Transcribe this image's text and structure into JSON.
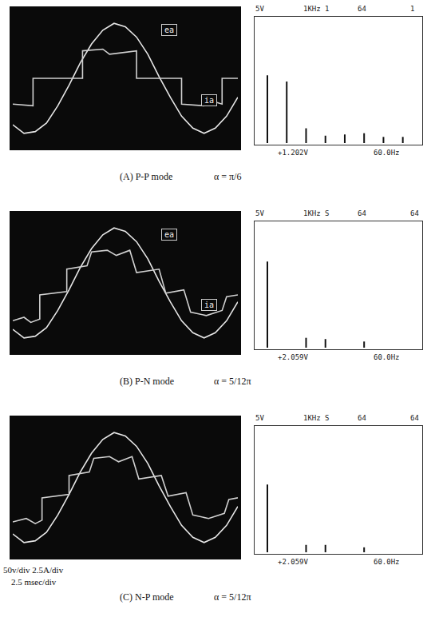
{
  "chart_data": [
    {
      "type": "line",
      "xlim": [
        0,
        10
      ],
      "ylim": [
        -4,
        4
      ],
      "tick_labels": false,
      "annotations": [
        "ea",
        "ia"
      ],
      "series": [
        {
          "color": "#e6e6e6",
          "x": [
            0,
            0.5,
            1,
            1.5,
            2,
            2.5,
            3,
            3.5,
            4,
            4.5,
            5,
            5.5,
            6,
            6.5,
            7,
            7.5,
            8,
            8.5,
            9,
            9.5,
            10
          ],
          "values": [
            -2.7,
            -3.2,
            -3.1,
            -2.6,
            -1.6,
            -0.4,
            0.9,
            2.0,
            2.8,
            3.2,
            3.0,
            2.4,
            1.4,
            0.1,
            -1.1,
            -2.2,
            -2.9,
            -3.2,
            -2.9,
            -2.2,
            -1.1
          ]
        },
        {
          "color": "#d0d0d0",
          "x": [
            0,
            0.9,
            0.9,
            3.1,
            3.1,
            4.0,
            4.3,
            5.5,
            5.5,
            7.5,
            7.5,
            8.5,
            8.8,
            9.3,
            9.3,
            10
          ],
          "values": [
            -1.5,
            -1.6,
            0,
            0,
            1.6,
            1.7,
            1.4,
            1.6,
            0,
            0,
            -1.5,
            -1.6,
            -1.3,
            -1.5,
            0,
            0
          ]
        }
      ]
    },
    {
      "type": "bar",
      "xlim": [
        0,
        1000
      ],
      "ylim": [
        0,
        10
      ],
      "tick_labels": false,
      "color": "#111111",
      "x": [
        60,
        180,
        300,
        420,
        540,
        660,
        780,
        900
      ],
      "values": [
        5.5,
        5.0,
        1.2,
        0.6,
        0.7,
        0.8,
        0.5,
        0.5
      ],
      "header": [
        "5V",
        "1KHz 1",
        "64",
        "1"
      ],
      "footer": [
        "+1.202V",
        "60.0Hz"
      ]
    },
    {
      "type": "line",
      "xlim": [
        0,
        10
      ],
      "ylim": [
        -4,
        4
      ],
      "tick_labels": false,
      "annotations": [
        "ea",
        "ia"
      ],
      "series": [
        {
          "color": "#e6e6e6",
          "x": [
            0,
            0.5,
            1,
            1.5,
            2,
            2.5,
            3,
            3.5,
            4,
            4.5,
            5,
            5.5,
            6,
            6.5,
            7,
            7.5,
            8,
            8.5,
            9,
            9.5,
            10
          ],
          "values": [
            -2.7,
            -3.2,
            -3.1,
            -2.6,
            -1.6,
            -0.4,
            0.9,
            2.0,
            2.8,
            3.2,
            3.0,
            2.4,
            1.4,
            0.1,
            -1.1,
            -2.2,
            -2.9,
            -3.2,
            -2.9,
            -2.2,
            -1.1
          ]
        },
        {
          "color": "#d0d0d0",
          "x": [
            0,
            0.5,
            0.8,
            1.2,
            1.2,
            2.4,
            2.4,
            3.3,
            3.5,
            4.2,
            4.6,
            5.2,
            5.5,
            6.5,
            6.8,
            7.6,
            7.9,
            8.6,
            9.3,
            9.5,
            10
          ],
          "values": [
            -2.2,
            -2.0,
            -2.3,
            -2.1,
            -0.7,
            -0.5,
            0.8,
            1.0,
            1.8,
            1.9,
            1.6,
            1.9,
            0.6,
            0.8,
            -0.6,
            -0.4,
            -1.7,
            -1.9,
            -1.6,
            -0.8,
            -0.7
          ]
        }
      ]
    },
    {
      "type": "bar",
      "xlim": [
        0,
        1000
      ],
      "ylim": [
        0,
        10
      ],
      "tick_labels": false,
      "color": "#111111",
      "x": [
        60,
        300,
        420,
        660
      ],
      "values": [
        7.0,
        0.8,
        0.7,
        0.5
      ],
      "header": [
        "5V",
        "1KHz S",
        "64",
        "64"
      ],
      "footer": [
        "+2.059V",
        "60.0Hz"
      ]
    },
    {
      "type": "line",
      "xlim": [
        0,
        10
      ],
      "ylim": [
        -4,
        4
      ],
      "tick_labels": false,
      "series": [
        {
          "color": "#e6e6e6",
          "x": [
            0,
            0.5,
            1,
            1.5,
            2,
            2.5,
            3,
            3.5,
            4,
            4.5,
            5,
            5.5,
            6,
            6.5,
            7,
            7.5,
            8,
            8.5,
            9,
            9.5,
            10
          ],
          "values": [
            -2.7,
            -3.2,
            -3.1,
            -2.6,
            -1.6,
            -0.4,
            0.9,
            2.0,
            2.8,
            3.2,
            3.0,
            2.4,
            1.4,
            0.1,
            -1.1,
            -2.2,
            -2.9,
            -3.2,
            -2.9,
            -2.2,
            -1.1
          ]
        },
        {
          "color": "#d0d0d0",
          "x": [
            0,
            0.6,
            1.0,
            1.3,
            1.3,
            2.5,
            2.5,
            3.4,
            3.6,
            4.3,
            4.7,
            5.3,
            5.6,
            6.6,
            6.9,
            7.7,
            8.0,
            8.7,
            9.4,
            9.6,
            10
          ],
          "values": [
            -2.0,
            -1.8,
            -2.1,
            -1.9,
            -0.6,
            -0.4,
            0.7,
            0.9,
            1.7,
            1.8,
            1.5,
            1.8,
            0.5,
            0.7,
            -0.5,
            -0.3,
            -1.6,
            -1.8,
            -1.5,
            -0.7,
            -0.6
          ]
        }
      ]
    },
    {
      "type": "bar",
      "xlim": [
        0,
        1000
      ],
      "ylim": [
        0,
        10
      ],
      "tick_labels": false,
      "color": "#111111",
      "x": [
        60,
        300,
        420,
        660
      ],
      "values": [
        5.5,
        0.6,
        0.6,
        0.4
      ],
      "header": [
        "5V",
        "1KHz S",
        "64",
        "64"
      ],
      "footer": [
        "+2.059V",
        "60.0Hz"
      ]
    }
  ],
  "captions": [
    {
      "label": "(A) P-P mode",
      "alpha": "α = π/6"
    },
    {
      "label": "(B) P-N mode",
      "alpha": "α = 5/12π"
    },
    {
      "label": "(C) N-P mode",
      "alpha": "α = 5/12π"
    }
  ],
  "scale_note": [
    "50v/div  2.5A/div",
    "2.5 msec/div"
  ]
}
